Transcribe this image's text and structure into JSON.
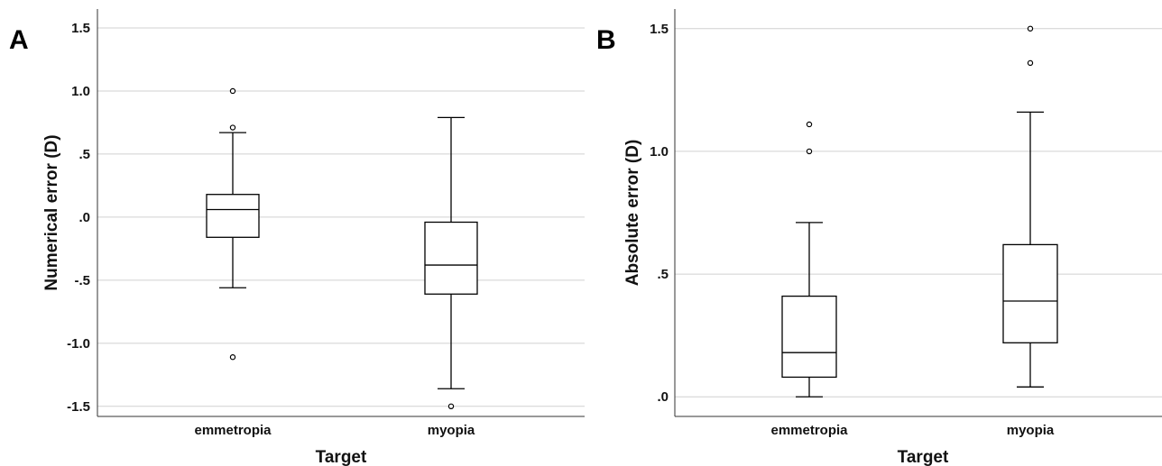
{
  "chart_data": [
    {
      "type": "box",
      "panel_label": "A",
      "title": "",
      "xlabel": "Target",
      "ylabel": "Numerical error (D)",
      "ylim": [
        -1.58,
        1.65
      ],
      "yticks": [
        1.5,
        1.0,
        0.5,
        0.0,
        -0.5,
        -1.0,
        -1.5
      ],
      "ytick_labels": [
        "1.5",
        "1.0",
        ".5",
        ".0",
        "-.5",
        "-1.0",
        "-1.5"
      ],
      "grid": true,
      "categories": [
        "emmetropia",
        "myopia"
      ],
      "boxes": [
        {
          "category": "emmetropia",
          "whisker_low": -0.56,
          "q1": -0.16,
          "median": 0.06,
          "q3": 0.18,
          "whisker_high": 0.67,
          "outliers": [
            1.0,
            0.71,
            -1.11
          ]
        },
        {
          "category": "myopia",
          "whisker_low": -1.36,
          "q1": -0.61,
          "median": -0.38,
          "q3": -0.04,
          "whisker_high": 0.79,
          "outliers": [
            -1.5
          ]
        }
      ]
    },
    {
      "type": "box",
      "panel_label": "B",
      "title": "",
      "xlabel": "Target",
      "ylabel": "Absolute error (D)",
      "ylim": [
        -0.08,
        1.58
      ],
      "yticks": [
        1.5,
        1.0,
        0.5,
        0.0
      ],
      "ytick_labels": [
        "1.5",
        "1.0",
        ".5",
        ".0"
      ],
      "grid": true,
      "categories": [
        "emmetropia",
        "myopia"
      ],
      "boxes": [
        {
          "category": "emmetropia",
          "whisker_low": 0.0,
          "q1": 0.08,
          "median": 0.18,
          "q3": 0.41,
          "whisker_high": 0.71,
          "outliers": [
            1.11,
            1.0
          ]
        },
        {
          "category": "myopia",
          "whisker_low": 0.04,
          "q1": 0.22,
          "median": 0.39,
          "q3": 0.62,
          "whisker_high": 1.16,
          "outliers": [
            1.5,
            1.36
          ]
        }
      ]
    }
  ]
}
